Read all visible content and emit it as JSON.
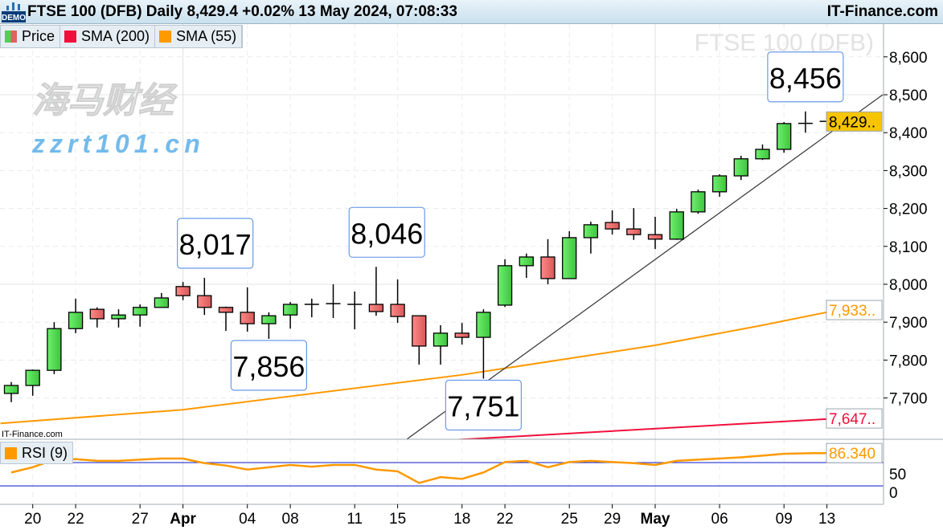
{
  "header": {
    "title": "FTSE 100 (DFB) Daily 8,429.4 +0.02% 13 May 2024, 07:08:33",
    "brand": "IT-Finance.com",
    "demo_badge": "DEMO"
  },
  "legend": [
    {
      "label": "Price",
      "colors": [
        "#4fd04f",
        "#e06060"
      ]
    },
    {
      "label": "SMA (200)",
      "colors": [
        "#f0103c"
      ]
    },
    {
      "label": "SMA (55)",
      "colors": [
        "#ff9900"
      ]
    }
  ],
  "rsi_legend": {
    "label": "RSI (9)",
    "color": "#ff9900"
  },
  "watermark_chart": "FTSE 100 (DFB)",
  "copyright": "IT-Finance.com",
  "site_watermark": {
    "cn": "海马财经",
    "url": "zzrt101.cn"
  },
  "chart_data": {
    "type": "candlestick",
    "title": "FTSE 100 (DFB) Daily",
    "ylim": [
      7500,
      8700
    ],
    "y_ticks": [
      "7,700",
      "7,800",
      "7,900",
      "8,000",
      "8,100",
      "8,200",
      "8,300",
      "8,400",
      "8,500",
      "8,600"
    ],
    "y_tick_values": [
      7700,
      7800,
      7900,
      8000,
      8100,
      8200,
      8300,
      8400,
      8500,
      8600
    ],
    "x_tick_labels": [
      {
        "label": "20",
        "index": 1
      },
      {
        "label": "22",
        "index": 3
      },
      {
        "label": "27",
        "index": 6
      },
      {
        "label": "Apr",
        "index": 8,
        "bold": true
      },
      {
        "label": "04",
        "index": 11
      },
      {
        "label": "08",
        "index": 13
      },
      {
        "label": "11",
        "index": 16
      },
      {
        "label": "15",
        "index": 18
      },
      {
        "label": "18",
        "index": 21
      },
      {
        "label": "22",
        "index": 23
      },
      {
        "label": "25",
        "index": 26
      },
      {
        "label": "29",
        "index": 28
      },
      {
        "label": "May",
        "index": 30,
        "bold": true
      },
      {
        "label": "06",
        "index": 33
      },
      {
        "label": "09",
        "index": 36
      },
      {
        "label": "13",
        "index": 38
      }
    ],
    "candles": [
      [
        7712,
        7742,
        7689,
        7733
      ],
      [
        7733,
        7775,
        7706,
        7773
      ],
      [
        7773,
        7900,
        7763,
        7883
      ],
      [
        7883,
        7962,
        7871,
        7926
      ],
      [
        7934,
        7939,
        7886,
        7909
      ],
      [
        7909,
        7934,
        7886,
        7919
      ],
      [
        7919,
        7947,
        7888,
        7939
      ],
      [
        7939,
        7977,
        7939,
        7964
      ],
      [
        7994,
        8006,
        7958,
        7970
      ],
      [
        7970,
        8017,
        7919,
        7939
      ],
      [
        7939,
        7941,
        7877,
        7926
      ],
      [
        7926,
        7992,
        7875,
        7896
      ],
      [
        7896,
        7926,
        7856,
        7917
      ],
      [
        7919,
        7953,
        7883,
        7947
      ],
      [
        7947,
        7962,
        7913,
        7947
      ],
      [
        7950,
        8000,
        7911,
        7948
      ],
      [
        7947,
        7981,
        7881,
        7947
      ],
      [
        7947,
        8046,
        7917,
        7928
      ],
      [
        7947,
        8013,
        7898,
        7915
      ],
      [
        7917,
        7917,
        7788,
        7837
      ],
      [
        7837,
        7892,
        7788,
        7871
      ],
      [
        7871,
        7898,
        7841,
        7860
      ],
      [
        7860,
        7934,
        7751,
        7926
      ],
      [
        7945,
        8066,
        7940,
        8049
      ],
      [
        8049,
        8081,
        8017,
        8072
      ],
      [
        8072,
        8119,
        8000,
        8015
      ],
      [
        8015,
        8140,
        8015,
        8123
      ],
      [
        8123,
        8165,
        8081,
        8157
      ],
      [
        8163,
        8195,
        8131,
        8146
      ],
      [
        8146,
        8201,
        8117,
        8131
      ],
      [
        8131,
        8178,
        8093,
        8119
      ],
      [
        8119,
        8199,
        8117,
        8191
      ],
      [
        8191,
        8250,
        8186,
        8244
      ],
      [
        8244,
        8290,
        8231,
        8286
      ],
      [
        8286,
        8339,
        8275,
        8331
      ],
      [
        8331,
        8369,
        8328,
        8356
      ],
      [
        8356,
        8428,
        8347,
        8424
      ],
      [
        8424,
        8456,
        8400,
        8425
      ],
      [
        8430,
        8436,
        8422,
        8429.4
      ]
    ],
    "candle_format": [
      "open",
      "high",
      "low",
      "close"
    ],
    "series": [
      {
        "name": "SMA (55)",
        "color": "#ff9900",
        "points": [
          [
            -0.5,
            7633
          ],
          [
            8,
            7669
          ],
          [
            21,
            7761
          ],
          [
            30,
            7839
          ],
          [
            35,
            7892
          ],
          [
            38.5,
            7932
          ]
        ],
        "last_label": "7,933.."
      },
      {
        "name": "SMA (200)",
        "color": "#f0103c",
        "points": [
          [
            20.5,
            7589
          ],
          [
            38.5,
            7646
          ]
        ],
        "last_label": "7,647.."
      }
    ],
    "last_price_label": "8,429..",
    "annotations": [
      {
        "text": "8,017",
        "index": 9.5,
        "price": 8017
      },
      {
        "text": "7,856",
        "index": 12,
        "price": 7856
      },
      {
        "text": "8,046",
        "index": 17.5,
        "price": 8046
      },
      {
        "text": "7,751",
        "index": 22,
        "price": 7751
      },
      {
        "text": "8,456",
        "index": 37,
        "price": 8456
      }
    ],
    "trendline": [
      [
        18.4,
        7590
      ],
      [
        40.6,
        8500
      ]
    ],
    "rsi": {
      "label": "RSI (9)",
      "levels": [
        70,
        30
      ],
      "y_ticks": [
        "50",
        "0"
      ],
      "last_label": "86.340",
      "values": [
        53,
        62,
        75,
        76,
        73,
        73,
        75,
        77,
        77,
        69,
        65,
        58,
        62,
        66,
        63,
        66,
        66,
        58,
        55,
        35,
        45,
        42,
        53,
        71,
        73,
        62,
        71,
        73,
        71,
        69,
        66,
        73,
        75,
        77,
        79,
        82,
        85,
        86,
        86.34
      ]
    },
    "grid": true,
    "legend_position": "top-left"
  }
}
